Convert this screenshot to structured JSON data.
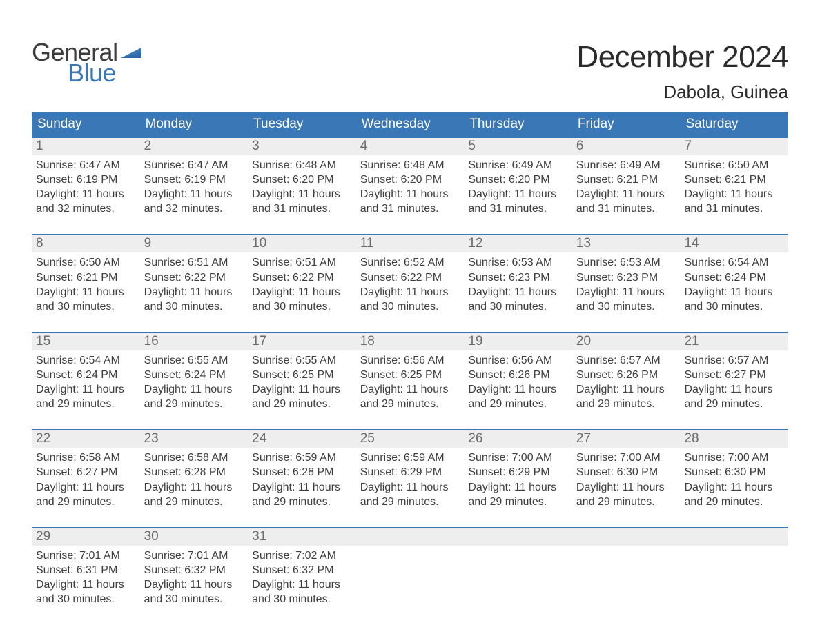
{
  "brand": {
    "word1": "General",
    "word2": "Blue"
  },
  "title": "December 2024",
  "location": "Dabola, Guinea",
  "colors": {
    "brand_blue": "#3a77b7",
    "header_gray": "#eeeeee",
    "text": "#404040",
    "white": "#ffffff"
  },
  "typography": {
    "title_fontsize": 44,
    "location_fontsize": 26,
    "dow_fontsize": 19,
    "daynum_fontsize": 19,
    "body_fontsize": 16
  },
  "calendar": {
    "type": "table",
    "days_of_week": [
      "Sunday",
      "Monday",
      "Tuesday",
      "Wednesday",
      "Thursday",
      "Friday",
      "Saturday"
    ],
    "weeks": [
      [
        {
          "n": "1",
          "sunrise": "Sunrise: 6:47 AM",
          "sunset": "Sunset: 6:19 PM",
          "daylight": "Daylight: 11 hours and 32 minutes."
        },
        {
          "n": "2",
          "sunrise": "Sunrise: 6:47 AM",
          "sunset": "Sunset: 6:19 PM",
          "daylight": "Daylight: 11 hours and 32 minutes."
        },
        {
          "n": "3",
          "sunrise": "Sunrise: 6:48 AM",
          "sunset": "Sunset: 6:20 PM",
          "daylight": "Daylight: 11 hours and 31 minutes."
        },
        {
          "n": "4",
          "sunrise": "Sunrise: 6:48 AM",
          "sunset": "Sunset: 6:20 PM",
          "daylight": "Daylight: 11 hours and 31 minutes."
        },
        {
          "n": "5",
          "sunrise": "Sunrise: 6:49 AM",
          "sunset": "Sunset: 6:20 PM",
          "daylight": "Daylight: 11 hours and 31 minutes."
        },
        {
          "n": "6",
          "sunrise": "Sunrise: 6:49 AM",
          "sunset": "Sunset: 6:21 PM",
          "daylight": "Daylight: 11 hours and 31 minutes."
        },
        {
          "n": "7",
          "sunrise": "Sunrise: 6:50 AM",
          "sunset": "Sunset: 6:21 PM",
          "daylight": "Daylight: 11 hours and 31 minutes."
        }
      ],
      [
        {
          "n": "8",
          "sunrise": "Sunrise: 6:50 AM",
          "sunset": "Sunset: 6:21 PM",
          "daylight": "Daylight: 11 hours and 30 minutes."
        },
        {
          "n": "9",
          "sunrise": "Sunrise: 6:51 AM",
          "sunset": "Sunset: 6:22 PM",
          "daylight": "Daylight: 11 hours and 30 minutes."
        },
        {
          "n": "10",
          "sunrise": "Sunrise: 6:51 AM",
          "sunset": "Sunset: 6:22 PM",
          "daylight": "Daylight: 11 hours and 30 minutes."
        },
        {
          "n": "11",
          "sunrise": "Sunrise: 6:52 AM",
          "sunset": "Sunset: 6:22 PM",
          "daylight": "Daylight: 11 hours and 30 minutes."
        },
        {
          "n": "12",
          "sunrise": "Sunrise: 6:53 AM",
          "sunset": "Sunset: 6:23 PM",
          "daylight": "Daylight: 11 hours and 30 minutes."
        },
        {
          "n": "13",
          "sunrise": "Sunrise: 6:53 AM",
          "sunset": "Sunset: 6:23 PM",
          "daylight": "Daylight: 11 hours and 30 minutes."
        },
        {
          "n": "14",
          "sunrise": "Sunrise: 6:54 AM",
          "sunset": "Sunset: 6:24 PM",
          "daylight": "Daylight: 11 hours and 30 minutes."
        }
      ],
      [
        {
          "n": "15",
          "sunrise": "Sunrise: 6:54 AM",
          "sunset": "Sunset: 6:24 PM",
          "daylight": "Daylight: 11 hours and 29 minutes."
        },
        {
          "n": "16",
          "sunrise": "Sunrise: 6:55 AM",
          "sunset": "Sunset: 6:24 PM",
          "daylight": "Daylight: 11 hours and 29 minutes."
        },
        {
          "n": "17",
          "sunrise": "Sunrise: 6:55 AM",
          "sunset": "Sunset: 6:25 PM",
          "daylight": "Daylight: 11 hours and 29 minutes."
        },
        {
          "n": "18",
          "sunrise": "Sunrise: 6:56 AM",
          "sunset": "Sunset: 6:25 PM",
          "daylight": "Daylight: 11 hours and 29 minutes."
        },
        {
          "n": "19",
          "sunrise": "Sunrise: 6:56 AM",
          "sunset": "Sunset: 6:26 PM",
          "daylight": "Daylight: 11 hours and 29 minutes."
        },
        {
          "n": "20",
          "sunrise": "Sunrise: 6:57 AM",
          "sunset": "Sunset: 6:26 PM",
          "daylight": "Daylight: 11 hours and 29 minutes."
        },
        {
          "n": "21",
          "sunrise": "Sunrise: 6:57 AM",
          "sunset": "Sunset: 6:27 PM",
          "daylight": "Daylight: 11 hours and 29 minutes."
        }
      ],
      [
        {
          "n": "22",
          "sunrise": "Sunrise: 6:58 AM",
          "sunset": "Sunset: 6:27 PM",
          "daylight": "Daylight: 11 hours and 29 minutes."
        },
        {
          "n": "23",
          "sunrise": "Sunrise: 6:58 AM",
          "sunset": "Sunset: 6:28 PM",
          "daylight": "Daylight: 11 hours and 29 minutes."
        },
        {
          "n": "24",
          "sunrise": "Sunrise: 6:59 AM",
          "sunset": "Sunset: 6:28 PM",
          "daylight": "Daylight: 11 hours and 29 minutes."
        },
        {
          "n": "25",
          "sunrise": "Sunrise: 6:59 AM",
          "sunset": "Sunset: 6:29 PM",
          "daylight": "Daylight: 11 hours and 29 minutes."
        },
        {
          "n": "26",
          "sunrise": "Sunrise: 7:00 AM",
          "sunset": "Sunset: 6:29 PM",
          "daylight": "Daylight: 11 hours and 29 minutes."
        },
        {
          "n": "27",
          "sunrise": "Sunrise: 7:00 AM",
          "sunset": "Sunset: 6:30 PM",
          "daylight": "Daylight: 11 hours and 29 minutes."
        },
        {
          "n": "28",
          "sunrise": "Sunrise: 7:00 AM",
          "sunset": "Sunset: 6:30 PM",
          "daylight": "Daylight: 11 hours and 29 minutes."
        }
      ],
      [
        {
          "n": "29",
          "sunrise": "Sunrise: 7:01 AM",
          "sunset": "Sunset: 6:31 PM",
          "daylight": "Daylight: 11 hours and 30 minutes."
        },
        {
          "n": "30",
          "sunrise": "Sunrise: 7:01 AM",
          "sunset": "Sunset: 6:32 PM",
          "daylight": "Daylight: 11 hours and 30 minutes."
        },
        {
          "n": "31",
          "sunrise": "Sunrise: 7:02 AM",
          "sunset": "Sunset: 6:32 PM",
          "daylight": "Daylight: 11 hours and 30 minutes."
        },
        null,
        null,
        null,
        null
      ]
    ]
  }
}
